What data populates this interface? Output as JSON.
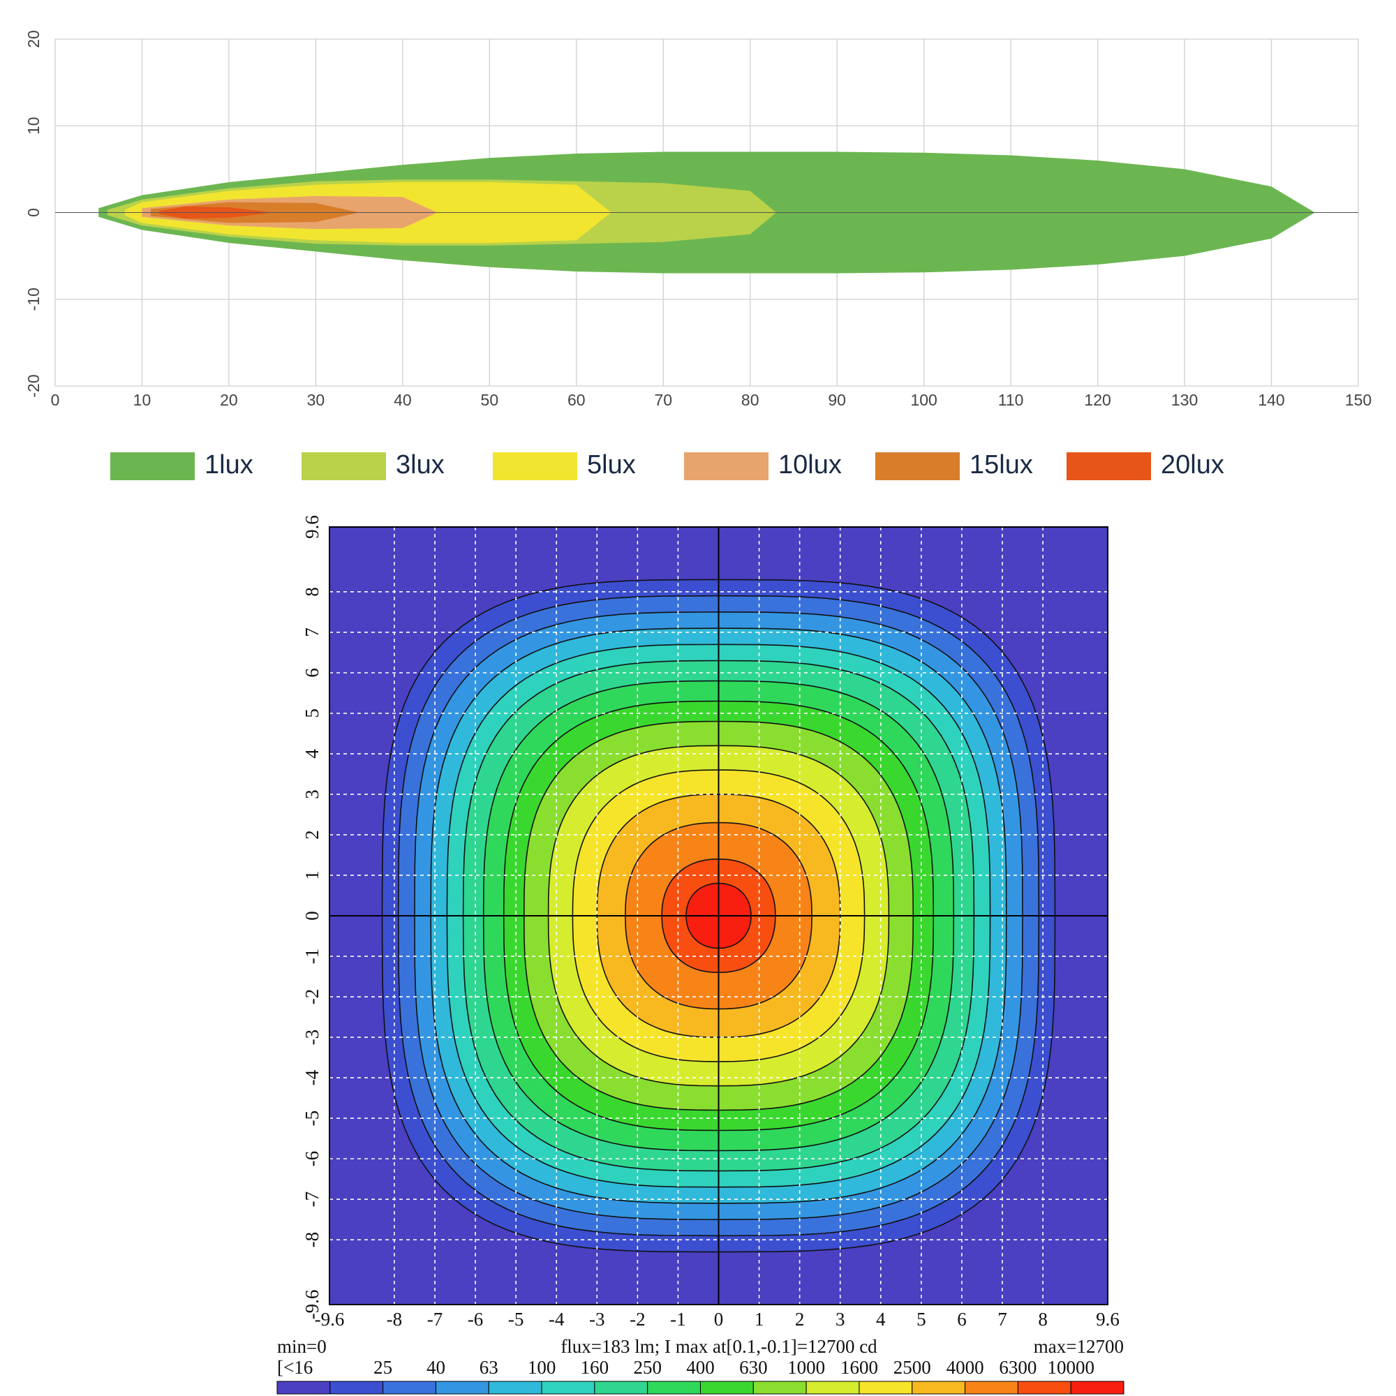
{
  "chart_data": [
    {
      "type": "isolux",
      "xlim": [
        0,
        150
      ],
      "xticks": [
        0,
        10,
        20,
        30,
        40,
        50,
        60,
        70,
        80,
        90,
        100,
        110,
        120,
        130,
        140,
        150
      ],
      "ylim": [
        -20,
        20
      ],
      "yticks": [
        -20,
        -10,
        0,
        10,
        20
      ],
      "grid": true,
      "series": [
        {
          "name": "1lux",
          "color": "#6cb651",
          "x": [
            5,
            10,
            20,
            30,
            40,
            50,
            60,
            70,
            80,
            90,
            100,
            110,
            120,
            130,
            140,
            145
          ],
          "values": [
            0.5,
            2,
            3.5,
            4.5,
            5.5,
            6.3,
            6.8,
            7,
            7,
            7,
            6.9,
            6.6,
            6,
            5,
            3,
            0
          ]
        },
        {
          "name": "3lux",
          "color": "#b9d24a",
          "x": [
            6,
            10,
            20,
            30,
            40,
            50,
            60,
            70,
            80,
            83
          ],
          "values": [
            0.3,
            1.5,
            2.8,
            3.6,
            3.8,
            3.8,
            3.6,
            3.4,
            2.5,
            0
          ]
        },
        {
          "name": "5lux",
          "color": "#f2e530",
          "x": [
            8,
            10,
            20,
            30,
            40,
            50,
            60,
            64
          ],
          "values": [
            0.3,
            1.2,
            2.5,
            3.2,
            3.5,
            3.5,
            3.2,
            0
          ]
        },
        {
          "name": "10lux",
          "color": "#e8a46d",
          "x": [
            10,
            20,
            30,
            40,
            44
          ],
          "values": [
            0.5,
            1.5,
            1.9,
            1.8,
            0
          ]
        },
        {
          "name": "15lux",
          "color": "#d87d2a",
          "x": [
            11,
            20,
            30,
            35
          ],
          "values": [
            0.4,
            1.2,
            1.1,
            0
          ]
        },
        {
          "name": "20lux",
          "color": "#e85518",
          "x": [
            12,
            15,
            20,
            25
          ],
          "values": [
            0.2,
            0.7,
            0.6,
            0
          ]
        }
      ]
    },
    {
      "type": "intensity",
      "xlim": [
        -9.6,
        9.6
      ],
      "xticks": [
        -9.6,
        -8,
        -7,
        -6,
        -5,
        -4,
        -3,
        -2,
        -1,
        0,
        1,
        2,
        3,
        4,
        5,
        6,
        7,
        8,
        9.6
      ],
      "ylim": [
        -9.6,
        9.6
      ],
      "yticks": [
        -9.6,
        -8,
        -7,
        -6,
        -5,
        -4,
        -3,
        -2,
        -1,
        0,
        1,
        2,
        3,
        4,
        5,
        6,
        7,
        8,
        9.6
      ],
      "annotations": [
        "min=0",
        "flux=183 lm; I max at[0.1,-0.1]=12700 cd",
        "max=12700"
      ],
      "levels": [
        16,
        25,
        40,
        63,
        100,
        160,
        250,
        400,
        630,
        1000,
        1600,
        2500,
        4000,
        6300,
        10000
      ],
      "level_labels": [
        "[<16",
        "25",
        "40",
        "63",
        "100",
        "160",
        "250",
        "400",
        "630",
        "1000",
        "1600",
        "2500",
        "4000",
        "6300",
        "10000"
      ],
      "radius": [
        8.3,
        7.9,
        7.5,
        7.1,
        6.7,
        6.3,
        5.8,
        5.3,
        4.8,
        4.2,
        3.6,
        3.0,
        2.3,
        1.4,
        0.8
      ],
      "colors": [
        "#4b3fc2",
        "#3c4fd0",
        "#3a72dc",
        "#3496e2",
        "#30b9da",
        "#2fd2bd",
        "#2fd690",
        "#2fd85a",
        "#3ad82f",
        "#8ade2f",
        "#d6ec2f",
        "#f6e42a",
        "#f8b820",
        "#f88418",
        "#f84e10",
        "#f81e10"
      ]
    }
  ]
}
